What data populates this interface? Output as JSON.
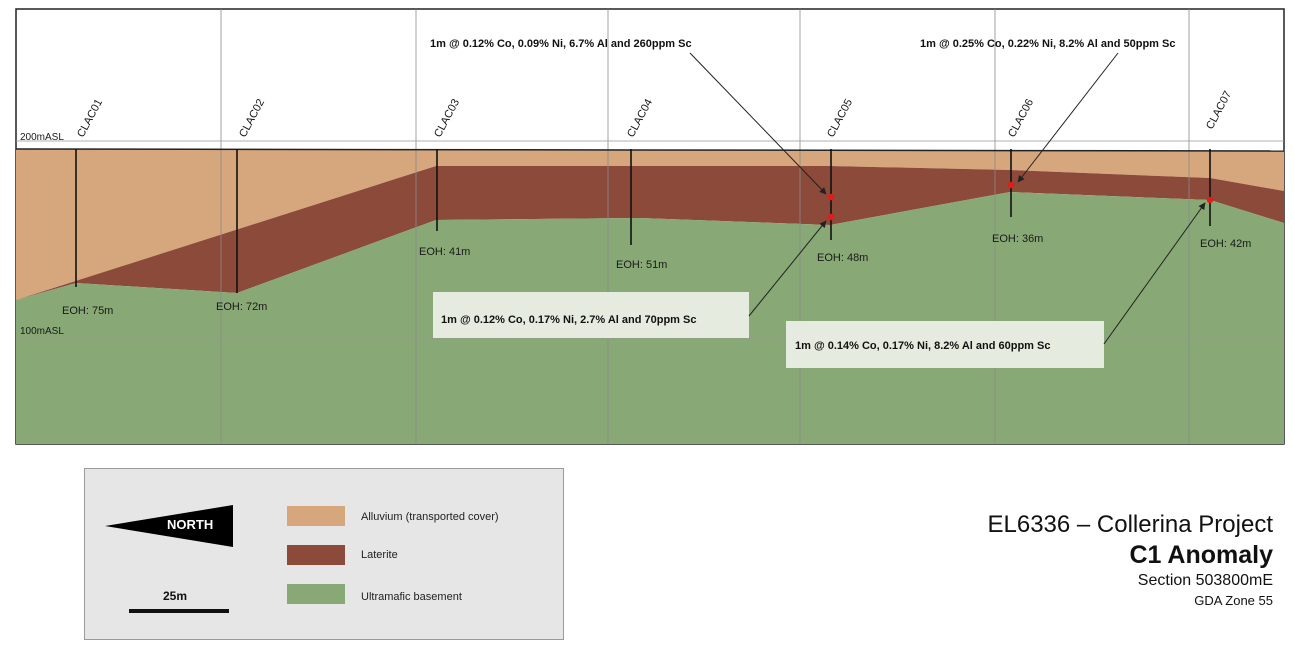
{
  "section": {
    "elevation_labels": {
      "top": "200mASL",
      "bottom": "100mASL"
    },
    "drillholes": [
      {
        "id": "CLAC01",
        "eoh": "EOH: 75m",
        "depth_m": 75
      },
      {
        "id": "CLAC02",
        "eoh": "EOH: 72m",
        "depth_m": 72
      },
      {
        "id": "CLAC03",
        "eoh": "EOH: 41m",
        "depth_m": 41
      },
      {
        "id": "CLAC04",
        "eoh": "EOH: 51m",
        "depth_m": 51
      },
      {
        "id": "CLAC05",
        "eoh": "EOH: 48m",
        "depth_m": 48
      },
      {
        "id": "CLAC06",
        "eoh": "EOH: 36m",
        "depth_m": 36
      },
      {
        "id": "CLAC07",
        "eoh": "EOH: 42m",
        "depth_m": 42
      }
    ],
    "callouts": [
      {
        "text": "1m @ 0.12% Co, 0.09% Ni, 6.7% Al and 260ppm Sc",
        "boxed": false
      },
      {
        "text": "1m @ 0.25% Co, 0.22% Ni, 8.2% Al and 50ppm Sc",
        "boxed": false
      },
      {
        "text": "1m @ 0.12% Co, 0.17% Ni, 2.7% Al and 70ppm Sc",
        "boxed": true
      },
      {
        "text": "1m @ 0.14% Co, 0.17% Ni, 8.2% Al and 60ppm Sc",
        "boxed": true
      }
    ],
    "colors": {
      "alluvium": "#d6a67c",
      "laterite": "#8b4a3a",
      "basement": "#88a876",
      "sample_dot": "#e21b1b"
    }
  },
  "legend": {
    "north_label": "NORTH",
    "scale_label": "25m",
    "items": [
      {
        "label": "Alluvium  (transported cover)",
        "color": "#d6a67c"
      },
      {
        "label": "Laterite",
        "color": "#8b4a3a"
      },
      {
        "label": "Ultramafic  basement",
        "color": "#88a876"
      }
    ]
  },
  "title_block": {
    "project": "EL6336 – Collerina Project",
    "anomaly": "C1 Anomaly",
    "section": "Section 503800mE",
    "zone": "GDA Zone 55"
  }
}
